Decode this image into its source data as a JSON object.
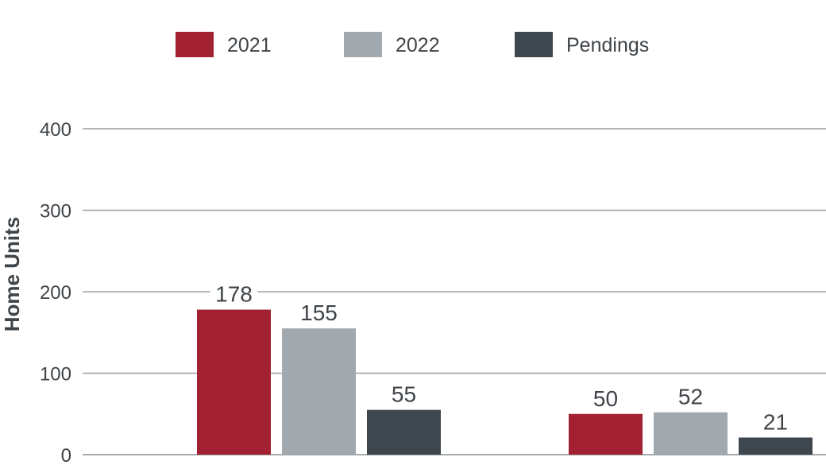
{
  "chart_data": {
    "type": "bar",
    "categories": [
      "",
      ""
    ],
    "series": [
      {
        "name": "2021",
        "values": [
          178,
          50
        ],
        "color": "#a12031"
      },
      {
        "name": "2022",
        "values": [
          155,
          52
        ],
        "color": "#a1a9ae"
      },
      {
        "name": "Pendings",
        "values": [
          55,
          21
        ],
        "color": "#3f474e"
      }
    ],
    "ylabel": "Home Units",
    "ylim": [
      0,
      400
    ],
    "yticks": [
      0,
      100,
      200,
      300,
      400
    ],
    "grid": true,
    "legend": "top-center",
    "colors": {
      "text": "#3f4449",
      "grid": "#9aa0a4",
      "background": "#ffffff"
    }
  }
}
